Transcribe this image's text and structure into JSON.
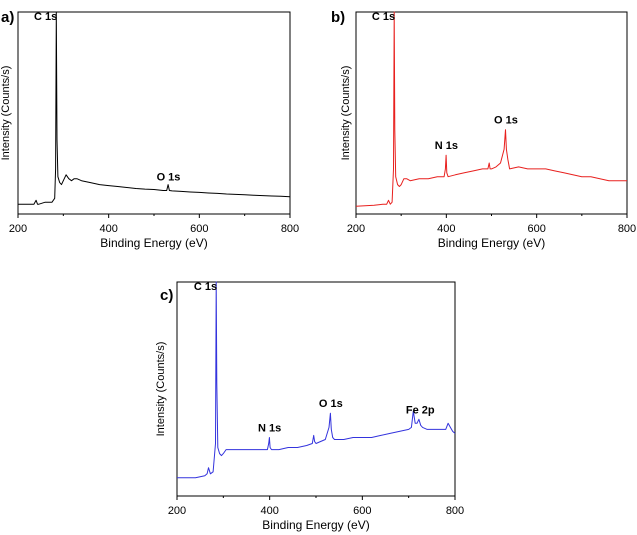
{
  "chart_data": [
    {
      "type": "line",
      "panel_label": "a)",
      "xlabel": "Binding Energy (eV)",
      "ylabel": "Intensity (Counts/s)",
      "xlim": [
        200,
        800
      ],
      "x_ticks": [
        200,
        400,
        600,
        800
      ],
      "y_ticks_shown": false,
      "color": "#000000",
      "series": [
        {
          "x": [
            200,
            235,
            240,
            243,
            246,
            260,
            275,
            281,
            283,
            284.5,
            286,
            288,
            292,
            296,
            300,
            306,
            312,
            318,
            324,
            330,
            340,
            360,
            380,
            400,
            420,
            440,
            460,
            480,
            500,
            520,
            528,
            531,
            534,
            540,
            560,
            580,
            600,
            620,
            640,
            660,
            680,
            700,
            720,
            740,
            760,
            780,
            800
          ],
          "y": [
            0.02,
            0.02,
            0.04,
            0.02,
            0.02,
            0.03,
            0.03,
            0.05,
            0.2,
            1.0,
            0.35,
            0.16,
            0.13,
            0.12,
            0.14,
            0.17,
            0.15,
            0.14,
            0.15,
            0.15,
            0.14,
            0.13,
            0.12,
            0.115,
            0.11,
            0.105,
            0.1,
            0.097,
            0.095,
            0.09,
            0.09,
            0.12,
            0.09,
            0.088,
            0.085,
            0.082,
            0.08,
            0.077,
            0.075,
            0.072,
            0.07,
            0.068,
            0.066,
            0.064,
            0.062,
            0.06,
            0.058
          ]
        }
      ],
      "annotations": [
        {
          "text": "C 1s",
          "x": 283
        },
        {
          "text": "O 1s",
          "x": 532
        }
      ]
    },
    {
      "type": "line",
      "panel_label": "b)",
      "xlabel": "Binding Energy (eV)",
      "ylabel": "Intensity (Counts/s)",
      "xlim": [
        200,
        800
      ],
      "x_ticks": [
        200,
        400,
        600,
        800
      ],
      "y_ticks_shown": false,
      "color": "#e8201e",
      "series": [
        {
          "x": [
            200,
            240,
            260,
            268,
            272,
            276,
            280,
            283,
            284.5,
            286,
            288,
            292,
            296,
            300,
            306,
            312,
            320,
            340,
            360,
            380,
            395,
            398,
            399.5,
            401,
            404,
            420,
            440,
            460,
            480,
            492,
            495,
            497,
            500,
            510,
            520,
            528,
            531,
            533,
            536,
            540,
            560,
            580,
            600,
            620,
            640,
            660,
            680,
            700,
            720,
            740,
            760,
            780,
            800
          ],
          "y": [
            0.01,
            0.015,
            0.02,
            0.02,
            0.04,
            0.02,
            0.03,
            0.2,
            1.0,
            0.4,
            0.16,
            0.12,
            0.11,
            0.12,
            0.15,
            0.15,
            0.14,
            0.15,
            0.15,
            0.16,
            0.16,
            0.2,
            0.27,
            0.18,
            0.16,
            0.17,
            0.18,
            0.19,
            0.2,
            0.2,
            0.23,
            0.2,
            0.2,
            0.21,
            0.23,
            0.3,
            0.4,
            0.3,
            0.25,
            0.2,
            0.21,
            0.2,
            0.2,
            0.2,
            0.19,
            0.18,
            0.17,
            0.16,
            0.16,
            0.15,
            0.14,
            0.14,
            0.14
          ]
        }
      ],
      "annotations": [
        {
          "text": "C 1s",
          "x": 283
        },
        {
          "text": "N 1s",
          "x": 400
        },
        {
          "text": "O 1s",
          "x": 532
        }
      ]
    },
    {
      "type": "line",
      "panel_label": "c)",
      "xlabel": "Binding Energy (eV)",
      "ylabel": "Intensity (Counts/s)",
      "xlim": [
        200,
        800
      ],
      "x_ticks": [
        200,
        400,
        600,
        800
      ],
      "y_ticks_shown": false,
      "color": "#3333dd",
      "series": [
        {
          "x": [
            200,
            240,
            260,
            265,
            268,
            272,
            278,
            283,
            284.5,
            286,
            288,
            292,
            296,
            300,
            306,
            312,
            320,
            340,
            360,
            380,
            395,
            398,
            399.5,
            401,
            404,
            420,
            440,
            460,
            480,
            492,
            495,
            497,
            500,
            510,
            520,
            528,
            531,
            533,
            536,
            540,
            560,
            580,
            600,
            620,
            640,
            660,
            680,
            700,
            706,
            710,
            714,
            718,
            722,
            726,
            730,
            740,
            760,
            780,
            785,
            790,
            795,
            800
          ],
          "y": [
            0.03,
            0.03,
            0.04,
            0.05,
            0.08,
            0.05,
            0.06,
            0.2,
            1.0,
            0.5,
            0.18,
            0.15,
            0.14,
            0.15,
            0.17,
            0.17,
            0.17,
            0.17,
            0.17,
            0.17,
            0.17,
            0.2,
            0.23,
            0.18,
            0.17,
            0.17,
            0.18,
            0.18,
            0.19,
            0.2,
            0.24,
            0.21,
            0.2,
            0.21,
            0.22,
            0.28,
            0.35,
            0.27,
            0.23,
            0.22,
            0.22,
            0.23,
            0.23,
            0.23,
            0.24,
            0.25,
            0.26,
            0.27,
            0.28,
            0.36,
            0.3,
            0.3,
            0.32,
            0.29,
            0.28,
            0.27,
            0.27,
            0.27,
            0.3,
            0.28,
            0.26,
            0.25
          ]
        }
      ],
      "annotations": [
        {
          "text": "C 1s",
          "x": 283
        },
        {
          "text": "N 1s",
          "x": 400
        },
        {
          "text": "O 1s",
          "x": 532
        },
        {
          "text": "Fe 2p",
          "x": 725
        }
      ]
    }
  ]
}
